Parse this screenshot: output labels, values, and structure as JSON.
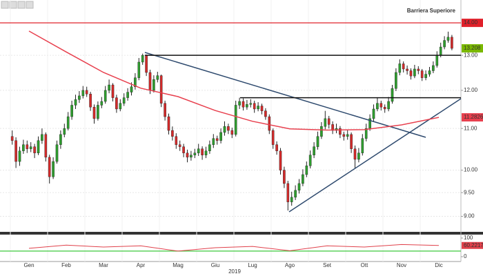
{
  "chart_data": {
    "type": "candlestick",
    "log_scale": true,
    "ylim": [
      8.7,
      14.75
    ],
    "yticks": [
      {
        "value": 9,
        "label": "9.00"
      },
      {
        "value": 9.5,
        "label": "9.50"
      },
      {
        "value": 10,
        "label": "10.00"
      },
      {
        "value": 11,
        "label": "11.00"
      },
      {
        "value": 12,
        "label": "12.00"
      },
      {
        "value": 13,
        "label": "13.00"
      }
    ],
    "grid": true,
    "up_color": "#2e9e2e",
    "down_color": "#d42a2a",
    "year": "2019",
    "levels": [
      {
        "name": "Barriera Superiore",
        "value": 14,
        "value_label": "14.00",
        "color": "#e0202a"
      }
    ],
    "moving_average": {
      "color": "#e8404e"
    },
    "months": [
      {
        "label": "Gen",
        "ma": 13.74,
        "candles": [
          [
            10.8,
            10.95,
            10.6,
            10.7
          ],
          [
            10.7,
            10.78,
            10.05,
            10.2
          ],
          [
            10.2,
            10.55,
            10.1,
            10.45
          ],
          [
            10.45,
            10.72,
            10.38,
            10.6
          ],
          [
            10.6,
            10.7,
            10.4,
            10.5
          ],
          [
            10.5,
            10.66,
            10.42,
            10.55
          ],
          [
            10.55,
            10.62,
            10.28,
            10.4
          ],
          [
            10.4,
            10.8,
            10.35,
            10.7
          ],
          [
            10.7,
            11.0,
            10.62,
            10.85
          ],
          [
            10.85,
            10.9,
            10.2,
            10.3
          ]
        ]
      },
      {
        "label": "Feb",
        "ma": 13.1,
        "candles": [
          [
            10.3,
            10.36,
            9.7,
            9.85
          ],
          [
            9.85,
            10.3,
            9.8,
            10.2
          ],
          [
            10.2,
            10.7,
            10.15,
            10.6
          ],
          [
            10.6,
            10.95,
            10.5,
            10.85
          ],
          [
            10.85,
            11.12,
            10.78,
            11.0
          ],
          [
            11.0,
            11.42,
            10.95,
            11.3
          ],
          [
            11.3,
            11.72,
            11.22,
            11.6
          ],
          [
            11.6,
            11.88,
            11.5,
            11.75
          ],
          [
            11.75,
            11.98,
            11.66,
            11.85
          ],
          [
            11.85,
            12.12,
            11.78,
            12.0
          ]
        ]
      },
      {
        "label": "Mar",
        "ma": 12.5,
        "candles": [
          [
            12.0,
            12.1,
            11.82,
            11.9
          ],
          [
            11.9,
            11.96,
            11.45,
            11.55
          ],
          [
            11.55,
            11.62,
            11.12,
            11.25
          ],
          [
            11.25,
            11.7,
            11.2,
            11.6
          ],
          [
            11.6,
            11.82,
            11.52,
            11.7
          ],
          [
            11.7,
            12.12,
            11.64,
            12.0
          ],
          [
            12.0,
            12.3,
            11.92,
            12.15
          ],
          [
            12.15,
            12.2,
            11.7,
            11.8
          ],
          [
            11.8,
            11.88,
            11.4,
            11.5
          ],
          [
            11.5,
            11.76,
            11.44,
            11.65
          ]
        ]
      },
      {
        "label": "Apr",
        "ma": 12.06,
        "candles": [
          [
            11.65,
            11.92,
            11.58,
            11.8
          ],
          [
            11.8,
            12.06,
            11.72,
            11.95
          ],
          [
            11.95,
            12.22,
            11.86,
            12.1
          ],
          [
            12.1,
            12.48,
            12.02,
            12.35
          ],
          [
            12.35,
            12.92,
            12.28,
            12.8
          ],
          [
            12.8,
            13.05,
            12.72,
            13.0
          ],
          [
            13.0,
            13.02,
            12.4,
            12.5
          ],
          [
            12.5,
            12.58,
            11.9,
            12.0
          ],
          [
            12.0,
            12.42,
            11.94,
            12.3
          ],
          [
            12.3,
            12.52,
            12.22,
            12.41
          ]
        ]
      },
      {
        "label": "Mag",
        "ma": 11.83,
        "candles": [
          [
            12.41,
            12.44,
            11.55,
            11.65
          ],
          [
            11.65,
            11.72,
            11.2,
            11.3
          ],
          [
            11.3,
            11.38,
            10.85,
            10.95
          ],
          [
            10.95,
            11.05,
            10.7,
            10.8
          ],
          [
            10.8,
            10.88,
            10.5,
            10.6
          ],
          [
            10.6,
            10.7,
            10.45,
            10.55
          ],
          [
            10.55,
            10.62,
            10.3,
            10.4
          ],
          [
            10.4,
            10.48,
            10.18,
            10.3
          ],
          [
            10.3,
            10.45,
            10.22,
            10.35
          ],
          [
            10.35,
            10.5,
            10.28,
            10.4
          ]
        ]
      },
      {
        "label": "Giu",
        "ma": 11.46,
        "candles": [
          [
            10.4,
            10.62,
            10.33,
            10.5
          ],
          [
            10.5,
            10.56,
            10.24,
            10.35
          ],
          [
            10.35,
            10.55,
            10.28,
            10.45
          ],
          [
            10.45,
            10.7,
            10.38,
            10.6
          ],
          [
            10.6,
            10.86,
            10.52,
            10.75
          ],
          [
            10.75,
            10.82,
            10.6,
            10.7
          ],
          [
            10.7,
            11.0,
            10.63,
            10.9
          ],
          [
            10.9,
            11.18,
            10.82,
            11.05
          ],
          [
            11.05,
            11.12,
            10.86,
            10.95
          ],
          [
            10.95,
            11.02,
            10.76,
            10.85
          ]
        ]
      },
      {
        "label": "Lug",
        "ma": 11.18,
        "candles": [
          [
            10.85,
            11.72,
            10.8,
            11.6
          ],
          [
            11.6,
            11.8,
            11.5,
            11.7
          ],
          [
            11.7,
            11.78,
            11.46,
            11.55
          ],
          [
            11.55,
            11.74,
            11.48,
            11.62
          ],
          [
            11.62,
            11.76,
            11.54,
            11.65
          ],
          [
            11.65,
            11.72,
            11.4,
            11.5
          ],
          [
            11.5,
            11.68,
            11.44,
            11.58
          ],
          [
            11.58,
            11.64,
            11.36,
            11.45
          ],
          [
            11.45,
            11.52,
            11.22,
            11.3
          ],
          [
            11.3,
            11.36,
            10.86,
            10.95
          ]
        ]
      },
      {
        "label": "Ago",
        "ma": 10.99,
        "candles": [
          [
            10.95,
            11.0,
            10.5,
            10.6
          ],
          [
            10.6,
            10.68,
            10.36,
            10.45
          ],
          [
            10.45,
            10.52,
            9.9,
            10.0
          ],
          [
            10.0,
            10.08,
            9.6,
            9.7
          ],
          [
            9.7,
            9.76,
            9.12,
            9.3
          ],
          [
            9.3,
            9.52,
            9.22,
            9.4
          ],
          [
            9.4,
            9.66,
            9.34,
            9.55
          ],
          [
            9.55,
            9.8,
            9.48,
            9.7
          ],
          [
            9.7,
            10.02,
            9.64,
            9.9
          ],
          [
            9.9,
            10.2,
            9.84,
            10.1
          ]
        ]
      },
      {
        "label": "Set",
        "ma": 10.96,
        "candles": [
          [
            10.1,
            10.46,
            10.04,
            10.35
          ],
          [
            10.35,
            10.66,
            10.28,
            10.55
          ],
          [
            10.55,
            10.92,
            10.48,
            10.8
          ],
          [
            10.8,
            11.16,
            10.74,
            11.05
          ],
          [
            11.05,
            11.45,
            10.98,
            11.25
          ],
          [
            11.25,
            11.32,
            11.0,
            11.1
          ],
          [
            11.1,
            11.18,
            10.86,
            10.95
          ],
          [
            10.95,
            11.12,
            10.88,
            11.0
          ],
          [
            11.0,
            11.06,
            10.76,
            10.85
          ],
          [
            10.85,
            10.92,
            10.7,
            10.8
          ]
        ]
      },
      {
        "label": "Ott",
        "ma": 10.97,
        "candles": [
          [
            10.8,
            10.96,
            10.72,
            10.85
          ],
          [
            10.85,
            10.9,
            10.4,
            10.5
          ],
          [
            10.5,
            10.58,
            10.05,
            10.25
          ],
          [
            10.25,
            10.52,
            10.18,
            10.4
          ],
          [
            10.4,
            10.86,
            10.34,
            10.75
          ],
          [
            10.75,
            11.12,
            10.68,
            11.0
          ],
          [
            11.0,
            11.36,
            10.94,
            11.25
          ],
          [
            11.25,
            11.62,
            11.18,
            11.5
          ],
          [
            11.5,
            11.8,
            11.44,
            11.65
          ],
          [
            11.65,
            11.72,
            11.46,
            11.55
          ]
        ]
      },
      {
        "label": "Nov",
        "ma": 11.09,
        "candles": [
          [
            11.55,
            11.62,
            11.4,
            11.5
          ],
          [
            11.5,
            11.82,
            11.44,
            11.7
          ],
          [
            11.7,
            12.15,
            11.64,
            12.05
          ],
          [
            12.05,
            12.62,
            11.98,
            12.5
          ],
          [
            12.5,
            12.88,
            12.42,
            12.75
          ],
          [
            12.75,
            12.82,
            12.5,
            12.6
          ],
          [
            12.6,
            12.7,
            12.44,
            12.55
          ],
          [
            12.55,
            12.62,
            12.3,
            12.4
          ],
          [
            12.4,
            12.72,
            12.34,
            12.6
          ],
          [
            12.6,
            12.68,
            12.45,
            12.55
          ]
        ]
      },
      {
        "label": "Dic",
        "ma": 11.2826,
        "candles": [
          [
            12.55,
            12.6,
            12.26,
            12.35
          ],
          [
            12.35,
            12.56,
            12.28,
            12.45
          ],
          [
            12.45,
            12.66,
            12.38,
            12.55
          ],
          [
            12.55,
            12.82,
            12.48,
            12.7
          ],
          [
            12.7,
            13.12,
            12.64,
            13.0
          ],
          [
            13.0,
            13.38,
            12.94,
            13.25
          ],
          [
            13.25,
            13.58,
            13.18,
            13.45
          ],
          [
            13.45,
            13.72,
            13.38,
            13.55
          ],
          [
            13.55,
            13.62,
            13.15,
            13.208
          ]
        ]
      }
    ],
    "oscillator": {
      "color": "#e0404a",
      "ylim": [
        0,
        100
      ],
      "yticks": [
        0,
        100
      ],
      "levels": [
        30
      ],
      "level_color": "#3cc83c",
      "values": [
        45,
        62,
        52,
        58,
        30,
        48,
        55,
        32,
        58,
        52,
        65,
        60.2217
      ]
    }
  }
}
